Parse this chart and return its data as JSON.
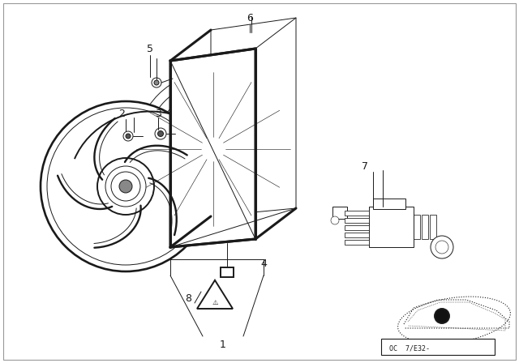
{
  "bg_color": "#ffffff",
  "line_color": "#1a1a1a",
  "border_color": "#cccccc",
  "footer_text": "OC  7/E32-",
  "label_fontsize": 9,
  "lw_main": 1.4,
  "lw_thin": 0.7,
  "lw_thick": 2.2
}
